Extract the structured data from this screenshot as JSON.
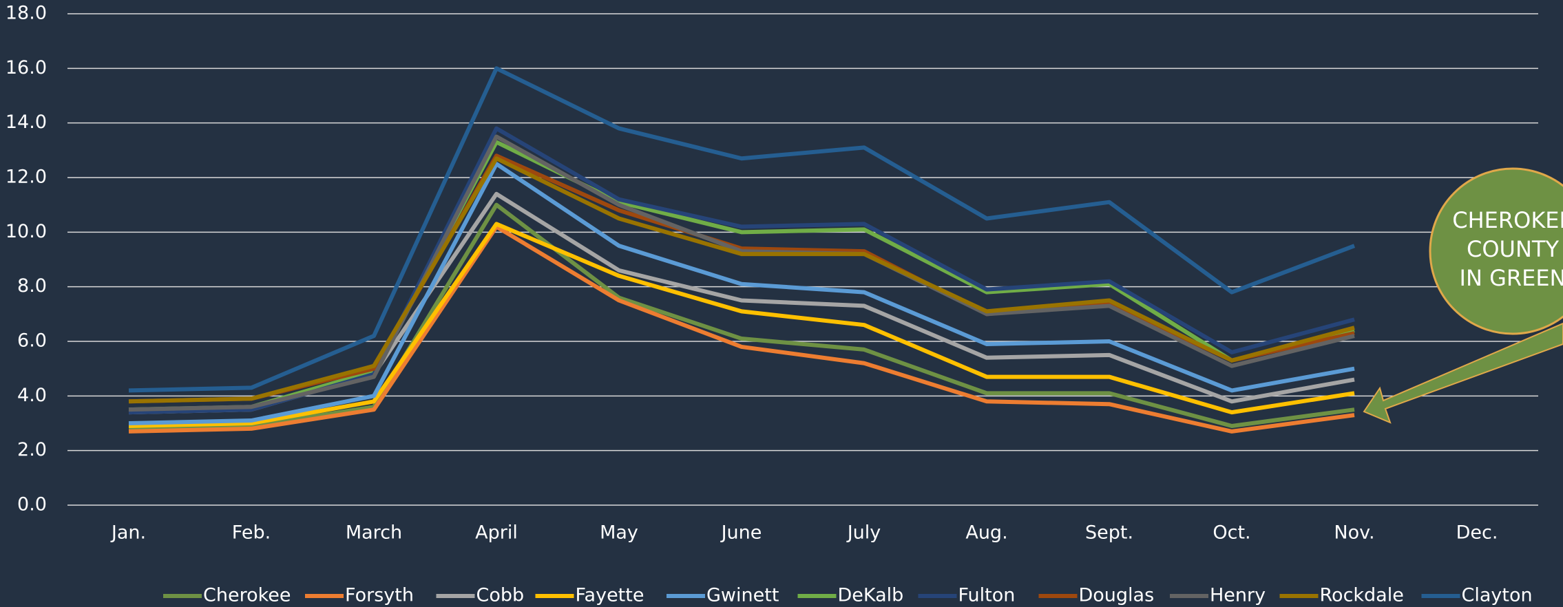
{
  "chart_data": {
    "type": "line",
    "categories": [
      "Jan.",
      "Feb.",
      "March",
      "April",
      "May",
      "June",
      "July",
      "Aug.",
      "Sept.",
      "Oct.",
      "Nov.",
      "Dec."
    ],
    "series": [
      {
        "name": "Cherokee",
        "color": "#6e9144",
        "values": [
          2.8,
          2.9,
          3.6,
          11.0,
          7.6,
          6.1,
          5.7,
          4.1,
          4.1,
          2.9,
          3.5,
          null
        ]
      },
      {
        "name": "Forsyth",
        "color": "#ed7d31",
        "values": [
          2.7,
          2.8,
          3.5,
          10.2,
          7.5,
          5.8,
          5.2,
          3.8,
          3.7,
          2.7,
          3.3,
          null
        ]
      },
      {
        "name": "Cobb",
        "color": "#a5a5a5",
        "values": [
          3.4,
          3.5,
          4.8,
          11.4,
          8.6,
          7.5,
          7.3,
          5.4,
          5.5,
          3.8,
          4.6,
          null
        ]
      },
      {
        "name": "Fayette",
        "color": "#ffc000",
        "values": [
          2.9,
          3.0,
          3.8,
          10.3,
          8.4,
          7.1,
          6.6,
          4.7,
          4.7,
          3.4,
          4.1,
          null
        ]
      },
      {
        "name": "Gwinett",
        "color": "#5b9bd5",
        "values": [
          3.0,
          3.1,
          4.0,
          12.5,
          9.5,
          8.1,
          7.8,
          5.9,
          6.0,
          4.2,
          5.0,
          null
        ]
      },
      {
        "name": "DeKalb",
        "color": "#70ad47",
        "values": [
          3.5,
          3.6,
          4.9,
          13.3,
          11.1,
          10.0,
          10.1,
          7.8,
          8.1,
          5.3,
          6.4,
          null
        ]
      },
      {
        "name": "Fulton",
        "color": "#264478",
        "values": [
          3.4,
          3.5,
          4.8,
          13.8,
          11.2,
          10.2,
          10.3,
          7.9,
          8.2,
          5.6,
          6.8,
          null
        ]
      },
      {
        "name": "Douglas",
        "color": "#9e480e",
        "values": [
          3.8,
          3.9,
          5.0,
          12.8,
          10.8,
          9.4,
          9.3,
          7.0,
          7.4,
          5.3,
          6.3,
          null
        ]
      },
      {
        "name": "Henry",
        "color": "#636363",
        "values": [
          3.5,
          3.6,
          4.7,
          13.5,
          11.0,
          9.3,
          9.2,
          7.0,
          7.3,
          5.1,
          6.2,
          null
        ]
      },
      {
        "name": "Rockdale",
        "color": "#997300",
        "values": [
          3.8,
          3.9,
          5.1,
          12.7,
          10.5,
          9.2,
          9.2,
          7.1,
          7.5,
          5.3,
          6.5,
          null
        ]
      },
      {
        "name": "Clayton",
        "color": "#255e91",
        "values": [
          4.2,
          4.3,
          6.2,
          16.0,
          13.8,
          12.7,
          13.1,
          10.5,
          11.1,
          7.8,
          9.5,
          null
        ]
      }
    ],
    "ylim": [
      0,
      18
    ],
    "yticks": [
      {
        "value": 0,
        "label": "0.0"
      },
      {
        "value": 2,
        "label": "2.0"
      },
      {
        "value": 4,
        "label": "4.0"
      },
      {
        "value": 6,
        "label": "6.0"
      },
      {
        "value": 8,
        "label": "8.0"
      },
      {
        "value": 10,
        "label": "10.0"
      },
      {
        "value": 12,
        "label": "12.0"
      },
      {
        "value": 14,
        "label": "14.0"
      },
      {
        "value": 16,
        "label": "16.0"
      },
      {
        "value": 18,
        "label": "18.0"
      }
    ],
    "grid": true,
    "legend": "bottom",
    "annotation_lines": [
      "CHEROKEE",
      "COUNTY",
      "IN GREEN"
    ]
  }
}
